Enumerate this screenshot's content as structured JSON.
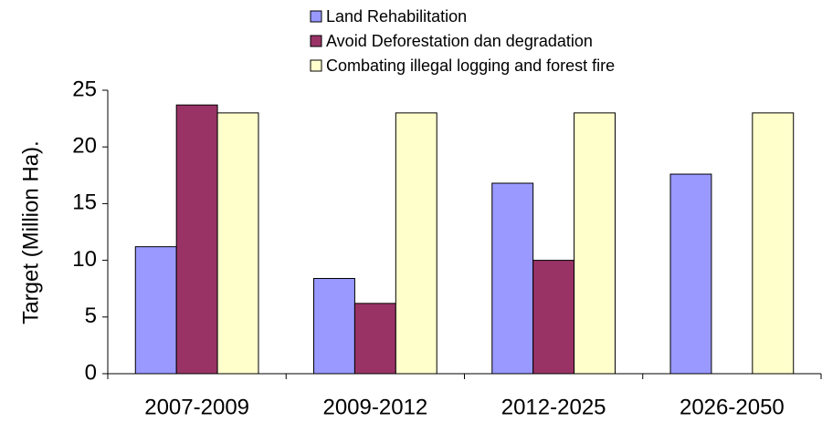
{
  "chart_data": {
    "type": "bar",
    "y_label": "Target (Million Ha).",
    "categories": [
      "2007-2009",
      "2009-2012",
      "2012-2025",
      "2026-2050"
    ],
    "series": [
      {
        "name": "Land Rehabilitation",
        "color": "#9999ff",
        "values": [
          11.2,
          8.4,
          16.8,
          17.6
        ]
      },
      {
        "name": "Avoid Deforestation dan degradation",
        "color": "#993366",
        "values": [
          23.7,
          6.2,
          10.0,
          null
        ]
      },
      {
        "name": "Combating illegal logging and forest fire",
        "color": "#ffffcc",
        "values": [
          23.0,
          23.0,
          23.0,
          23.0
        ]
      }
    ],
    "ylim": [
      0,
      25
    ],
    "yticks": [
      0,
      5,
      10,
      15,
      20,
      25
    ],
    "grid": false,
    "legend": "top"
  }
}
